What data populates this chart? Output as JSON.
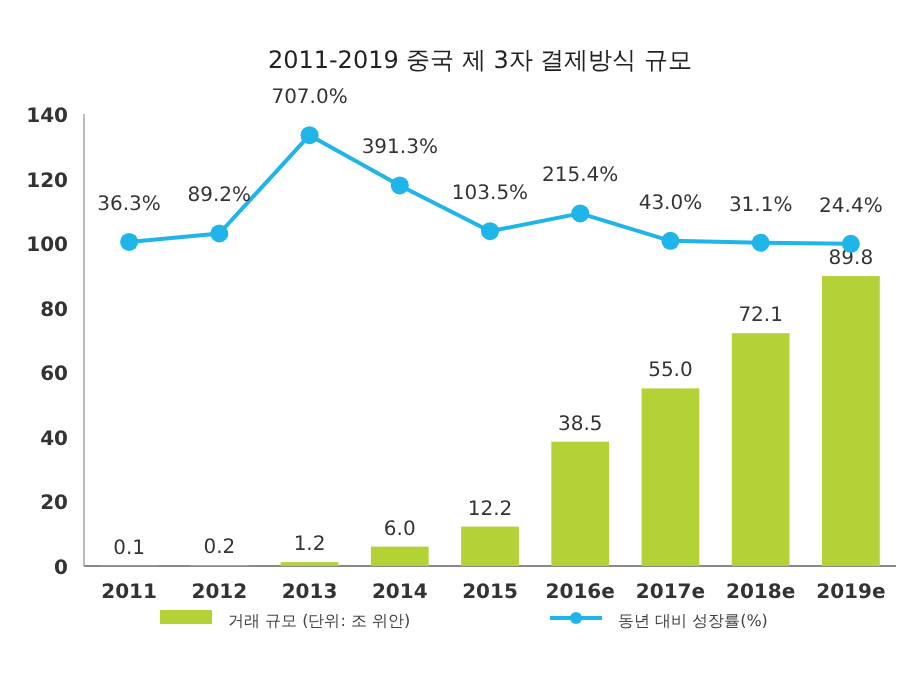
{
  "chart_data": {
    "type": "bar",
    "title": "2011-2019 중국 제 3자 결제방식 규모",
    "categories": [
      "2011",
      "2012",
      "2013",
      "2014",
      "2015",
      "2016e",
      "2017e",
      "2018e",
      "2019e"
    ],
    "series": [
      {
        "name": "거래 규모 (단위: 조 위안)",
        "color": "#b2d235",
        "values": [
          0.1,
          0.2,
          1.2,
          6.0,
          12.2,
          38.5,
          55.0,
          72.1,
          89.8
        ],
        "value_labels": [
          "0.1",
          "0.2",
          "1.2",
          "6.0",
          "12.2",
          "38.5",
          "55.0",
          "72.1",
          "89.8"
        ]
      },
      {
        "name": "동년 대비 성장률(%)",
        "type": "line",
        "axis": "y2",
        "marker": "circle",
        "color": "#1fb5e8",
        "values": [
          36.3,
          89.2,
          707.0,
          391.3,
          103.5,
          215.4,
          43.0,
          31.1,
          24.4
        ],
        "value_labels": [
          "36.3%",
          "89.2%",
          "707.0%",
          "391.3%",
          "103.5%",
          "215.4%",
          "43.0%",
          "31.1%",
          "24.4%"
        ]
      }
    ],
    "ylim": [
      0,
      140
    ],
    "yticks": [
      0,
      20,
      40,
      60,
      80,
      100,
      120,
      140
    ],
    "y2lim": [
      -2000,
      840
    ],
    "legend": "bottom"
  }
}
